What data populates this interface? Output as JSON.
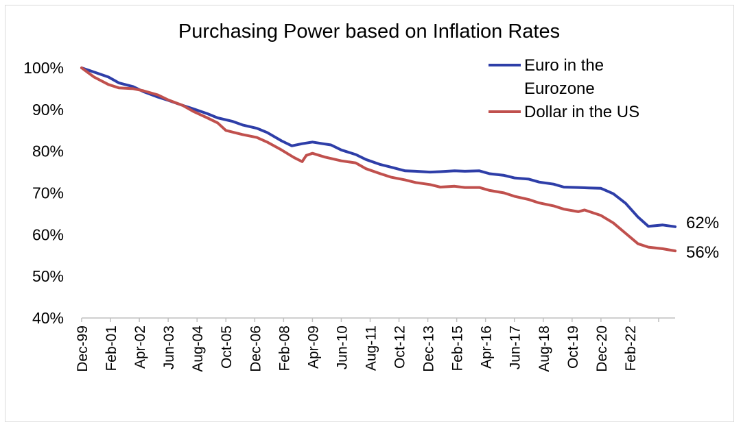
{
  "chart_data": {
    "type": "line",
    "title": "Purchasing Power based on Inflation Rates",
    "xlabel": "",
    "ylabel": "",
    "ylim": [
      40,
      100
    ],
    "y_ticks": [
      "40%",
      "50%",
      "60%",
      "70%",
      "80%",
      "90%",
      "100%"
    ],
    "x_tick_labels": [
      "Dec-99",
      "Feb-01",
      "Apr-02",
      "Jun-03",
      "Aug-04",
      "Oct-05",
      "Dec-06",
      "Feb-08",
      "Apr-09",
      "Jun-10",
      "Aug-11",
      "Oct-12",
      "Dec-13",
      "Feb-15",
      "Apr-16",
      "Jun-17",
      "Aug-18",
      "Oct-19",
      "Dec-20",
      "Feb-22"
    ],
    "x_ticks": [
      "1999-12",
      "2001-02",
      "2002-04",
      "2003-06",
      "2004-08",
      "2005-10",
      "2006-12",
      "2008-02",
      "2009-04",
      "2010-06",
      "2011-08",
      "2012-10",
      "2013-12",
      "2015-02",
      "2016-04",
      "2017-06",
      "2018-08",
      "2019-10",
      "2020-12",
      "2022-02"
    ],
    "x_range": [
      "1999-12",
      "2023-12"
    ],
    "grid": false,
    "legend_position": "top-right",
    "series": [
      {
        "name": "Euro in the Eurozone",
        "color": "#2e3ea8",
        "end_label": "62%",
        "points": [
          [
            "1999-12",
            100
          ],
          [
            "2000-06",
            99
          ],
          [
            "2001-01",
            97.8
          ],
          [
            "2001-06",
            96.4
          ],
          [
            "2002-01",
            95.5
          ],
          [
            "2002-06",
            94.3
          ],
          [
            "2003-01",
            93
          ],
          [
            "2003-06",
            92.2
          ],
          [
            "2004-01",
            91
          ],
          [
            "2004-06",
            90.2
          ],
          [
            "2005-01",
            89
          ],
          [
            "2005-06",
            88
          ],
          [
            "2006-01",
            87.2
          ],
          [
            "2006-06",
            86.3
          ],
          [
            "2007-01",
            85.5
          ],
          [
            "2007-06",
            84.5
          ],
          [
            "2008-01",
            82.5
          ],
          [
            "2008-06",
            81.3
          ],
          [
            "2008-11",
            81.8
          ],
          [
            "2009-04",
            82.2
          ],
          [
            "2009-09",
            81.8
          ],
          [
            "2010-01",
            81.5
          ],
          [
            "2010-06",
            80.3
          ],
          [
            "2011-01",
            79.2
          ],
          [
            "2011-06",
            78
          ],
          [
            "2012-01",
            76.8
          ],
          [
            "2012-06",
            76.2
          ],
          [
            "2013-01",
            75.3
          ],
          [
            "2013-06",
            75.2
          ],
          [
            "2014-01",
            75
          ],
          [
            "2014-06",
            75.1
          ],
          [
            "2015-01",
            75.3
          ],
          [
            "2015-06",
            75.2
          ],
          [
            "2016-01",
            75.3
          ],
          [
            "2016-06",
            74.6
          ],
          [
            "2017-01",
            74.2
          ],
          [
            "2017-06",
            73.6
          ],
          [
            "2018-01",
            73.3
          ],
          [
            "2018-06",
            72.6
          ],
          [
            "2019-01",
            72.1
          ],
          [
            "2019-06",
            71.4
          ],
          [
            "2020-01",
            71.3
          ],
          [
            "2020-06",
            71.2
          ],
          [
            "2020-12",
            71.1
          ],
          [
            "2021-06",
            69.8
          ],
          [
            "2021-12",
            67.5
          ],
          [
            "2022-06",
            64.2
          ],
          [
            "2022-11",
            62
          ],
          [
            "2023-06",
            62.3
          ],
          [
            "2023-12",
            61.9
          ]
        ]
      },
      {
        "name": "Dollar in the US",
        "color": "#c0504d",
        "end_label": "56%",
        "points": [
          [
            "1999-12",
            100
          ],
          [
            "2000-06",
            97.8
          ],
          [
            "2001-01",
            96
          ],
          [
            "2001-06",
            95.2
          ],
          [
            "2002-01",
            95
          ],
          [
            "2002-06",
            94.5
          ],
          [
            "2003-01",
            93.5
          ],
          [
            "2003-06",
            92.3
          ],
          [
            "2004-01",
            91
          ],
          [
            "2004-06",
            89.6
          ],
          [
            "2005-01",
            88
          ],
          [
            "2005-06",
            86.8
          ],
          [
            "2005-10",
            85
          ],
          [
            "2006-06",
            84
          ],
          [
            "2007-01",
            83.3
          ],
          [
            "2007-06",
            82.2
          ],
          [
            "2008-01",
            80.3
          ],
          [
            "2008-07",
            78.5
          ],
          [
            "2008-11",
            77.5
          ],
          [
            "2009-01",
            79
          ],
          [
            "2009-04",
            79.5
          ],
          [
            "2009-10",
            78.6
          ],
          [
            "2010-06",
            77.7
          ],
          [
            "2011-01",
            77.2
          ],
          [
            "2011-06",
            75.8
          ],
          [
            "2012-01",
            74.6
          ],
          [
            "2012-06",
            73.8
          ],
          [
            "2013-01",
            73.1
          ],
          [
            "2013-06",
            72.5
          ],
          [
            "2014-01",
            72
          ],
          [
            "2014-06",
            71.4
          ],
          [
            "2015-01",
            71.6
          ],
          [
            "2015-06",
            71.3
          ],
          [
            "2016-01",
            71.3
          ],
          [
            "2016-06",
            70.6
          ],
          [
            "2017-01",
            70
          ],
          [
            "2017-06",
            69.2
          ],
          [
            "2018-01",
            68.4
          ],
          [
            "2018-06",
            67.6
          ],
          [
            "2019-01",
            66.9
          ],
          [
            "2019-06",
            66.1
          ],
          [
            "2020-01",
            65.5
          ],
          [
            "2020-04",
            65.9
          ],
          [
            "2020-12",
            64.6
          ],
          [
            "2021-06",
            62.8
          ],
          [
            "2021-12",
            60.3
          ],
          [
            "2022-06",
            57.8
          ],
          [
            "2022-11",
            57
          ],
          [
            "2023-06",
            56.6
          ],
          [
            "2023-12",
            56.1
          ]
        ]
      }
    ]
  }
}
